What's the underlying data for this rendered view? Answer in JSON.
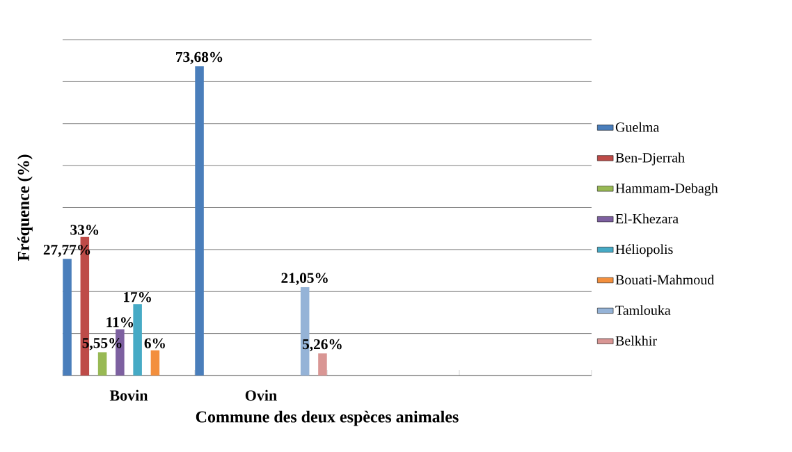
{
  "chart_data": {
    "type": "bar",
    "xlabel": "Commune des deux espèces animales",
    "ylabel": "Fréquence (%)",
    "categories": [
      "Bovin",
      "Ovin",
      null,
      null
    ],
    "series": [
      {
        "name": "Guelma",
        "color": "#4a7ebb",
        "values": [
          27.77,
          73.68,
          null,
          null
        ],
        "value_labels": [
          "27,77%",
          "73,68%",
          null,
          null
        ]
      },
      {
        "name": "Ben-Djerrah",
        "color": "#be4b48",
        "values": [
          33,
          null,
          null,
          null
        ],
        "value_labels": [
          "33%",
          null,
          null,
          null
        ]
      },
      {
        "name": "Hammam-Debagh",
        "color": "#98b954",
        "values": [
          5.55,
          null,
          null,
          null
        ],
        "value_labels": [
          "5,55%",
          null,
          null,
          null
        ]
      },
      {
        "name": "El-Khezara",
        "color": "#7d60a0",
        "values": [
          11,
          null,
          null,
          null
        ],
        "value_labels": [
          "11%",
          null,
          null,
          null
        ]
      },
      {
        "name": "Héliopolis",
        "color": "#46aac5",
        "values": [
          17,
          null,
          null,
          null
        ],
        "value_labels": [
          "17%",
          null,
          null,
          null
        ]
      },
      {
        "name": "Bouati-Mahmoud",
        "color": "#f38f3d",
        "values": [
          6,
          null,
          null,
          null
        ],
        "value_labels": [
          "6%",
          null,
          null,
          null
        ]
      },
      {
        "name": "Tamlouka",
        "color": "#95b3d7",
        "values": [
          null,
          21.05,
          null,
          null
        ],
        "value_labels": [
          null,
          "21,05%",
          null,
          null
        ]
      },
      {
        "name": "Belkhir",
        "color": "#d99694",
        "values": [
          null,
          5.26,
          null,
          null
        ],
        "value_labels": [
          null,
          "5,26%",
          null,
          null
        ]
      }
    ],
    "ylim": [
      0,
      80
    ],
    "yticks": [
      {
        "value": 0,
        "label": null
      },
      {
        "value": 10,
        "label": null
      },
      {
        "value": 20,
        "label": null
      },
      {
        "value": 30,
        "label": null
      },
      {
        "value": 40,
        "label": null
      },
      {
        "value": 50,
        "label": null
      },
      {
        "value": 60,
        "label": null
      },
      {
        "value": 70,
        "label": null
      },
      {
        "value": 80,
        "label": null
      }
    ],
    "tick_labels": "x",
    "grid": "y",
    "legend": "right"
  }
}
